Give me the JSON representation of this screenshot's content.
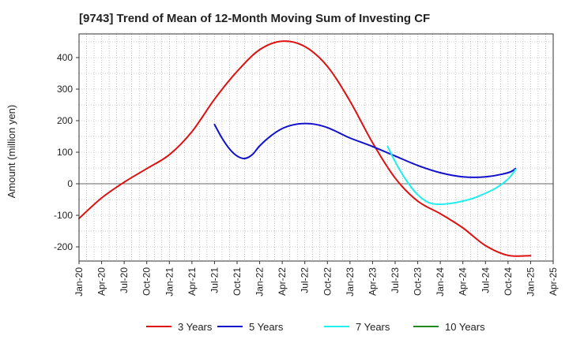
{
  "chart_data": {
    "type": "line",
    "title": "[9743]  Trend of Mean of 12-Month Moving Sum of Investing CF",
    "xlabel": "",
    "ylabel": "Amount (million yen)",
    "ylim": [
      -245,
      475
    ],
    "yticks": [
      -200,
      -100,
      0,
      100,
      200,
      300,
      400
    ],
    "x_categories": [
      "Jan-20",
      "Apr-20",
      "Jul-20",
      "Oct-20",
      "Jan-21",
      "Apr-21",
      "Jul-21",
      "Oct-21",
      "Jan-22",
      "Apr-22",
      "Jul-22",
      "Oct-22",
      "Jan-23",
      "Apr-23",
      "Jul-23",
      "Oct-23",
      "Jan-24",
      "Apr-24",
      "Jul-24",
      "Oct-24",
      "Jan-25",
      "Apr-25"
    ],
    "grid": true,
    "legend_position": "bottom",
    "series": [
      {
        "name": "3 Years",
        "color": "#dd1111",
        "points": [
          [
            0,
            -110
          ],
          [
            1,
            -45
          ],
          [
            2,
            5
          ],
          [
            3,
            48
          ],
          [
            4,
            92
          ],
          [
            5,
            165
          ],
          [
            6,
            268
          ],
          [
            7,
            356
          ],
          [
            8,
            425
          ],
          [
            9,
            452
          ],
          [
            10,
            435
          ],
          [
            11,
            372
          ],
          [
            12,
            262
          ],
          [
            13,
            130
          ],
          [
            14,
            18
          ],
          [
            15,
            -55
          ],
          [
            16,
            -95
          ],
          [
            17,
            -140
          ],
          [
            18,
            -196
          ],
          [
            19,
            -227
          ],
          [
            20,
            -228
          ]
        ]
      },
      {
        "name": "5 Years",
        "color": "#1111cc",
        "points": [
          [
            6,
            188
          ],
          [
            6.33,
            145
          ],
          [
            6.67,
            110
          ],
          [
            7,
            88
          ],
          [
            7.33,
            80
          ],
          [
            7.67,
            92
          ],
          [
            8,
            120
          ],
          [
            8.5,
            152
          ],
          [
            9,
            175
          ],
          [
            9.5,
            187
          ],
          [
            10,
            191
          ],
          [
            10.5,
            188
          ],
          [
            11,
            178
          ],
          [
            11.5,
            162
          ],
          [
            12,
            145
          ],
          [
            13,
            118
          ],
          [
            14,
            88
          ],
          [
            15,
            58
          ],
          [
            16,
            35
          ],
          [
            17,
            22
          ],
          [
            18,
            22
          ],
          [
            19,
            35
          ],
          [
            19.33,
            48
          ]
        ]
      },
      {
        "name": "7 Years",
        "color": "#22eeee",
        "points": [
          [
            13.67,
            118
          ],
          [
            14,
            70
          ],
          [
            14.5,
            10
          ],
          [
            15,
            -35
          ],
          [
            15.5,
            -60
          ],
          [
            16,
            -65
          ],
          [
            16.5,
            -62
          ],
          [
            17,
            -55
          ],
          [
            17.5,
            -45
          ],
          [
            18,
            -30
          ],
          [
            18.5,
            -12
          ],
          [
            19,
            15
          ],
          [
            19.33,
            45
          ]
        ]
      },
      {
        "name": "10 Years",
        "color": "#228822",
        "points": []
      }
    ]
  }
}
